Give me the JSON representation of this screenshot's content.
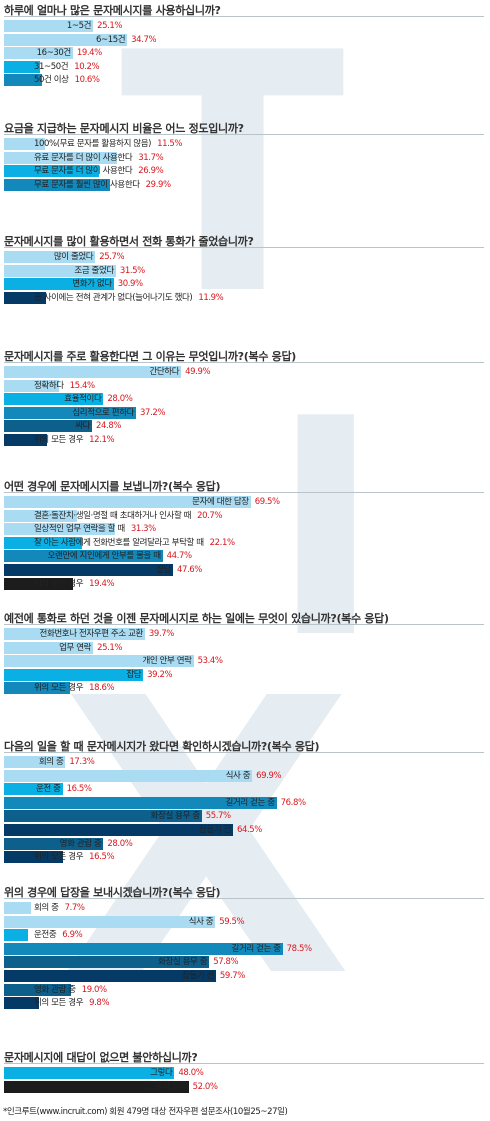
{
  "colors": {
    "light": "#a9dbf2",
    "cyan": "#0ab0e4",
    "blue": "#1388bb",
    "teal": "#0d5f8c",
    "navy": "#063a66",
    "black": "#1c1c1c",
    "pct_red": "#d8161d"
  },
  "chart_data": [
    {
      "type": "bar",
      "title": "하루에 얼마나 많은 문자메시지를 사용하십니까?",
      "categories": [
        "1~5건",
        "6~15건",
        "16~30건",
        "31~50건",
        "50건 이상"
      ],
      "values": [
        25.1,
        34.7,
        19.4,
        10.2,
        10.6
      ],
      "labels": [
        "25.1%",
        "34.7%",
        "19.4%",
        "10.2%",
        "10.6%"
      ],
      "colors": [
        "light",
        "light",
        "light",
        "cyan",
        "blue"
      ]
    },
    {
      "type": "bar",
      "title": "요금을 지급하는 문자메시지 비율은 어느 정도입니까?",
      "categories": [
        "100%(무료 문자를 활용하지 않음)",
        "유료 문자를 더 많이 사용한다",
        "무료 문자를 더 많이 사용한다",
        "무료 문자를 훨씬 많이 사용한다"
      ],
      "values": [
        11.5,
        31.7,
        26.9,
        29.9
      ],
      "labels": [
        "11.5%",
        "31.7%",
        "26.9%",
        "29.9%"
      ],
      "colors": [
        "light",
        "light",
        "cyan",
        "blue"
      ]
    },
    {
      "type": "bar",
      "title": "문자메시지를 많이 활용하면서 전화 통화가 줄었습니까?",
      "categories": [
        "많이 줄었다",
        "조금 줄었다",
        "변화가 없다",
        "둘 사이에는 전혀 관계가 없다(늘어나기도 했다)"
      ],
      "values": [
        25.7,
        31.5,
        30.9,
        11.9
      ],
      "labels": [
        "25.7%",
        "31.5%",
        "30.9%",
        "11.9%"
      ],
      "colors": [
        "light",
        "light",
        "cyan",
        "navy"
      ]
    },
    {
      "type": "bar",
      "title": "문자메시지를 주로 활용한다면 그 이유는 무엇입니까?(복수 응답)",
      "categories": [
        "간단하다",
        "정확하다",
        "효율적이다",
        "심리적으로 편하다",
        "싸다",
        "위의 모든 경우"
      ],
      "values": [
        49.9,
        15.4,
        28.0,
        37.2,
        24.8,
        12.1
      ],
      "labels": [
        "49.9%",
        "15.4%",
        "28.0%",
        "37.2%",
        "24.8%",
        "12.1%"
      ],
      "colors": [
        "light",
        "light",
        "cyan",
        "blue",
        "teal",
        "navy"
      ]
    },
    {
      "type": "bar",
      "title": "어떤 경우에 문자메시지를 보냅니까?(복수 응답)",
      "categories": [
        "문자에 대한 답장",
        "결혼·돌잔치·생일·명절 때 초대하거나 인사할 때",
        "일상적인 업무 연락을 할 때",
        "잘 아는 사람에게 전화번호를 알려달라고 부탁할 때",
        "오랜만에 지인에게 안부를 물을 때",
        "잡담",
        "위의 모든 경우"
      ],
      "values": [
        69.5,
        20.7,
        31.3,
        22.1,
        44.7,
        47.6,
        19.4
      ],
      "labels": [
        "69.5%",
        "20.7%",
        "31.3%",
        "22.1%",
        "44.7%",
        "47.6%",
        "19.4%"
      ],
      "colors": [
        "light",
        "light",
        "light",
        "cyan",
        "blue",
        "navy",
        "black"
      ]
    },
    {
      "type": "bar",
      "title": "예전에 통화로 하던 것을 이젠 문자메시지로 하는 일에는 무엇이 있습니까?(복수 응답)",
      "categories": [
        "전화번호나 전자우편 주소 교환",
        "업무 연락",
        "개인 안부 연락",
        "잡담",
        "위의 모든 경우"
      ],
      "values": [
        39.7,
        25.1,
        53.4,
        39.2,
        18.6
      ],
      "labels": [
        "39.7%",
        "25.1%",
        "53.4%",
        "39.2%",
        "18.6%"
      ],
      "colors": [
        "light",
        "light",
        "light",
        "cyan",
        "blue"
      ]
    },
    {
      "type": "bar",
      "title": "다음의 일을 할 때 문자메시지가 왔다면 확인하시겠습니까?(복수 응답)",
      "categories": [
        "회의 중",
        "식사 중",
        "운전 중",
        "길거리 걷는 중",
        "화장실 용무 중",
        "잠들기 전",
        "영화 관람 중",
        "위의 모든 경우"
      ],
      "values": [
        17.3,
        69.9,
        16.5,
        76.8,
        55.7,
        64.5,
        28.0,
        16.5
      ],
      "labels": [
        "17.3%",
        "69.9%",
        "16.5%",
        "76.8%",
        "55.7%",
        "64.5%",
        "28.0%",
        "16.5%"
      ],
      "colors": [
        "light",
        "light",
        "cyan",
        "blue",
        "teal",
        "navy",
        "teal",
        "navy"
      ]
    },
    {
      "type": "bar",
      "title": "위의 경우에 답장을 보내시겠습니까?(복수 응답)",
      "categories": [
        "회의 중",
        "식사 중",
        "운전중",
        "길거리 걷는 중",
        "화장실 용무 중",
        "잠들기 전",
        "영화 관람 중",
        "위의 모든 경우"
      ],
      "values": [
        7.7,
        59.5,
        6.9,
        78.5,
        57.8,
        59.7,
        19.0,
        9.8
      ],
      "labels": [
        "7.7%",
        "59.5%",
        "6.9%",
        "78.5%",
        "57.8%",
        "59.7%",
        "19.0%",
        "9.8%"
      ],
      "colors": [
        "light",
        "light",
        "cyan",
        "blue",
        "teal",
        "navy",
        "teal",
        "navy"
      ]
    },
    {
      "type": "bar",
      "title": "문자메시지에 대답이 없으면 불안하십니까?",
      "categories": [
        "그렇다",
        "그렇지 않다"
      ],
      "values": [
        48.0,
        52.0
      ],
      "labels": [
        "48.0%",
        "52.0%"
      ],
      "colors": [
        "cyan",
        "black"
      ]
    }
  ],
  "footer": "*인크루트(www.incruit.com) 회원 479명 대상 전자우편 설문조사(10월25~27일)"
}
